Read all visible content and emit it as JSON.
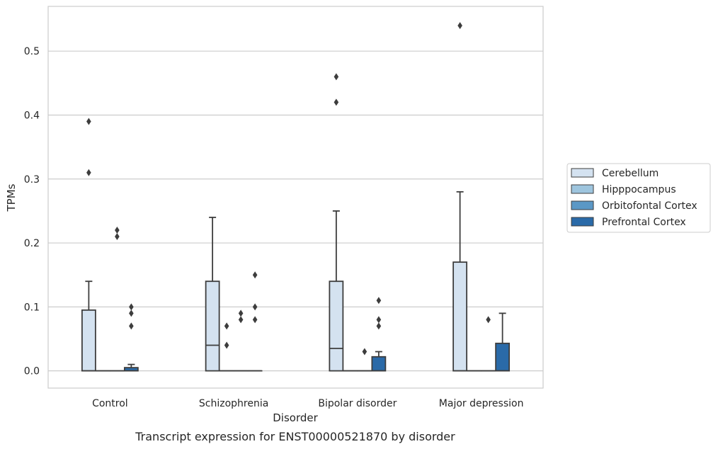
{
  "chart_data": {
    "type": "box",
    "caption": "Transcript expression for ENST00000521870 by disorder",
    "xlabel": "Disorder",
    "ylabel": "TPMs",
    "ylim": [
      -0.027,
      0.57
    ],
    "yticks": [
      0.0,
      0.1,
      0.2,
      0.3,
      0.4,
      0.5
    ],
    "ytick_labels": [
      "0.0",
      "0.1",
      "0.2",
      "0.3",
      "0.4",
      "0.5"
    ],
    "grid": "horizontal",
    "legend_position": "right",
    "categories": [
      "Control",
      "Schizophrenia",
      "Bipolar disorder",
      "Major depression"
    ],
    "series": [
      {
        "name": "Cerebellum",
        "color": "#d4e2f0",
        "boxes": [
          {
            "q1": 0,
            "median": 0,
            "q3": 0.095,
            "whisker_low": 0,
            "whisker_high": 0.14,
            "outliers": [
              0.31,
              0.39
            ]
          },
          {
            "q1": 0,
            "median": 0.04,
            "q3": 0.14,
            "whisker_low": 0,
            "whisker_high": 0.24,
            "outliers": []
          },
          {
            "q1": 0,
            "median": 0.035,
            "q3": 0.14,
            "whisker_low": 0,
            "whisker_high": 0.25,
            "outliers": [
              0.42,
              0.46
            ]
          },
          {
            "q1": 0,
            "median": 0,
            "q3": 0.17,
            "whisker_low": 0,
            "whisker_high": 0.28,
            "outliers": [
              0.54
            ]
          }
        ]
      },
      {
        "name": "Hipppocampus",
        "color": "#9ec5de",
        "boxes": [
          {
            "q1": 0,
            "median": 0,
            "q3": 0,
            "whisker_low": 0,
            "whisker_high": 0,
            "outliers": []
          },
          {
            "q1": 0,
            "median": 0,
            "q3": 0,
            "whisker_low": 0,
            "whisker_high": 0,
            "outliers": [
              0.04,
              0.07
            ]
          },
          {
            "q1": 0,
            "median": 0,
            "q3": 0,
            "whisker_low": 0,
            "whisker_high": 0,
            "outliers": []
          },
          {
            "q1": 0,
            "median": 0,
            "q3": 0,
            "whisker_low": 0,
            "whisker_high": 0,
            "outliers": []
          }
        ]
      },
      {
        "name": "Orbitofontal Cortex",
        "color": "#5b98c6",
        "boxes": [
          {
            "q1": 0,
            "median": 0,
            "q3": 0,
            "whisker_low": 0,
            "whisker_high": 0,
            "outliers": [
              0.21,
              0.22
            ]
          },
          {
            "q1": 0,
            "median": 0,
            "q3": 0,
            "whisker_low": 0,
            "whisker_high": 0,
            "outliers": [
              0.08,
              0.09
            ]
          },
          {
            "q1": 0,
            "median": 0,
            "q3": 0,
            "whisker_low": 0,
            "whisker_high": 0,
            "outliers": [
              0.03
            ]
          },
          {
            "q1": 0,
            "median": 0,
            "q3": 0,
            "whisker_low": 0,
            "whisker_high": 0,
            "outliers": [
              0.08
            ]
          }
        ]
      },
      {
        "name": "Prefrontal Cortex",
        "color": "#2a6aa8",
        "boxes": [
          {
            "q1": 0,
            "median": 0,
            "q3": 0.005,
            "whisker_low": 0,
            "whisker_high": 0.01,
            "outliers": [
              0.07,
              0.09,
              0.1
            ]
          },
          {
            "q1": 0,
            "median": 0,
            "q3": 0,
            "whisker_low": 0,
            "whisker_high": 0,
            "outliers": [
              0.08,
              0.1,
              0.15
            ]
          },
          {
            "q1": 0,
            "median": 0,
            "q3": 0.022,
            "whisker_low": 0,
            "whisker_high": 0.03,
            "outliers": [
              0.07,
              0.08,
              0.11
            ]
          },
          {
            "q1": 0,
            "median": 0,
            "q3": 0.043,
            "whisker_low": 0,
            "whisker_high": 0.09,
            "outliers": []
          }
        ]
      }
    ]
  }
}
